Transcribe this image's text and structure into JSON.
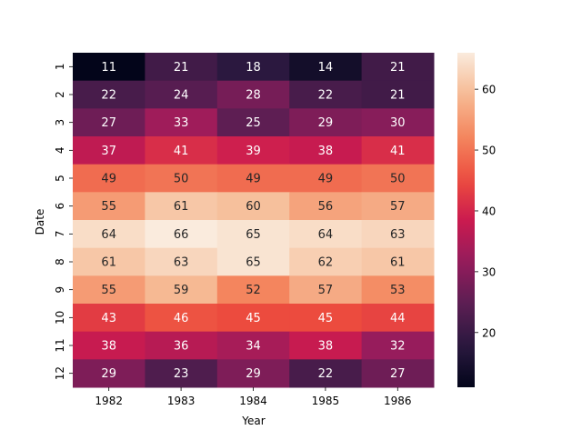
{
  "chart_data": {
    "type": "heatmap",
    "title": "",
    "xlabel": "Year",
    "ylabel": "Date",
    "x_categories": [
      "1982",
      "1983",
      "1984",
      "1985",
      "1986"
    ],
    "y_categories": [
      "1",
      "2",
      "3",
      "4",
      "5",
      "6",
      "7",
      "8",
      "9",
      "10",
      "11",
      "12"
    ],
    "values": [
      [
        11,
        21,
        18,
        14,
        21
      ],
      [
        22,
        24,
        28,
        22,
        21
      ],
      [
        27,
        33,
        25,
        29,
        30
      ],
      [
        37,
        41,
        39,
        38,
        41
      ],
      [
        49,
        50,
        49,
        49,
        50
      ],
      [
        55,
        61,
        60,
        56,
        57
      ],
      [
        64,
        66,
        65,
        64,
        63
      ],
      [
        61,
        63,
        65,
        62,
        61
      ],
      [
        55,
        59,
        52,
        57,
        53
      ],
      [
        43,
        46,
        45,
        45,
        44
      ],
      [
        38,
        36,
        34,
        38,
        32
      ],
      [
        29,
        23,
        29,
        22,
        27
      ]
    ],
    "colorbar": {
      "min": 11,
      "max": 66,
      "ticks": [
        "20",
        "30",
        "40",
        "50",
        "60"
      ],
      "colormap": "rocket"
    },
    "annotations": true,
    "grid": false
  }
}
